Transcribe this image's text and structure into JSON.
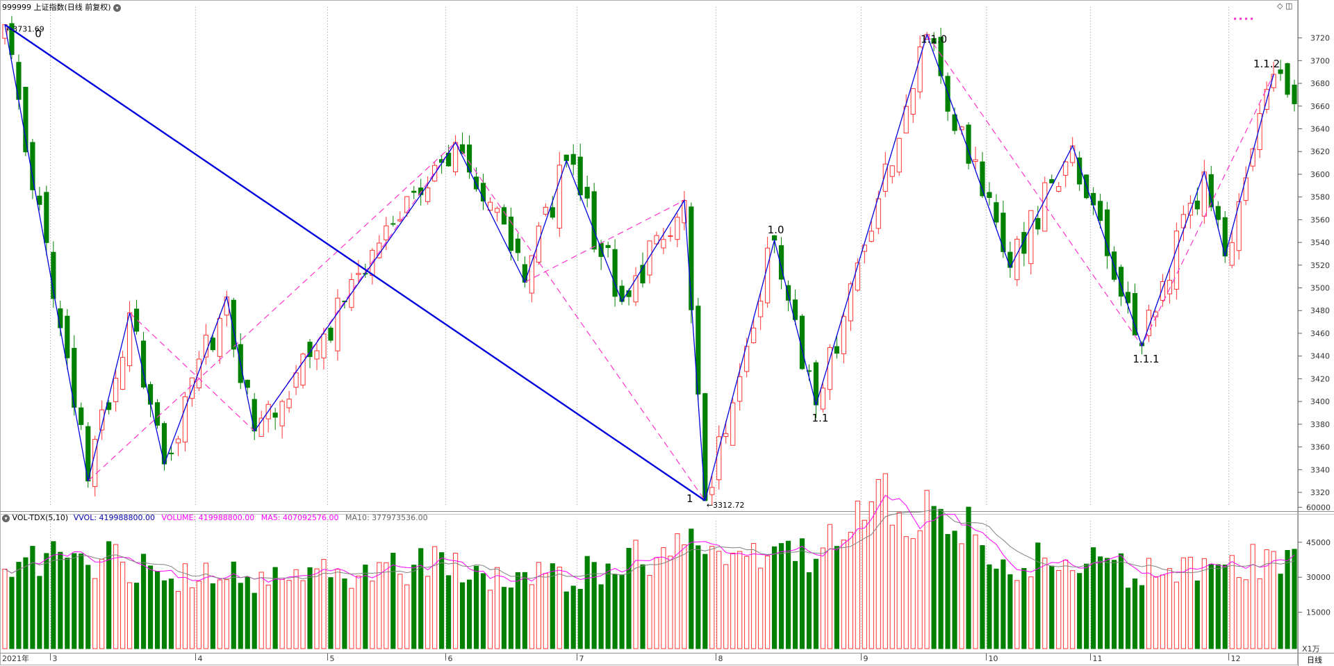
{
  "header": {
    "title": "999999 上证指数(日线 前复权)",
    "menu_icon": "chevron-down-icon",
    "corner_icons": [
      "diamond-icon",
      "window-icon"
    ]
  },
  "volume_header": {
    "indicator": "VOL-TDX(5,10)",
    "vvol": "VVOL: 419988800.00",
    "volume": "VOLUME: 419988800.00",
    "ma5": "MA5: 407092576.00",
    "ma10": "MA10: 377973536.00"
  },
  "footer": {
    "period_label": "日线",
    "unit_label": "X1万",
    "year_label": "2021年"
  },
  "colors": {
    "up": "#ff3232",
    "down": "#008000",
    "wave_primary": "#0000dd",
    "wave_secondary": "#ff33cc",
    "grid": "#a0a0a0",
    "ma5": "#ff00ff",
    "ma10": "#808080",
    "vvol_text": "#0000aa"
  },
  "chart_data": {
    "type": "candlestick",
    "price_axis": {
      "ticks": [
        3320,
        3340,
        3360,
        3380,
        3400,
        3420,
        3440,
        3460,
        3480,
        3500,
        3520,
        3540,
        3560,
        3580,
        3600,
        3620,
        3640,
        3660,
        3680,
        3700,
        3720
      ]
    },
    "month_labels": [
      "3",
      "4",
      "5",
      "6",
      "7",
      "8",
      "9",
      "10",
      "11",
      "12"
    ],
    "high_annotation": "3731.69",
    "low_annotation": "3312.72",
    "wave_labels": [
      {
        "text": "0",
        "idx": 0,
        "price": 3731.69
      },
      {
        "text": "1",
        "idx": 101,
        "price": 3312.72
      },
      {
        "text": "1.0",
        "idx": 111,
        "price": 3542
      },
      {
        "text": "1.1",
        "idx": 117,
        "price": 3397
      },
      {
        "text": "1.1.0",
        "idx": 133,
        "price": 3723
      },
      {
        "text": "1.1.1",
        "idx": 164,
        "price": 3449
      },
      {
        "text": "1.1.2",
        "idx": 183,
        "price": 3688
      }
    ],
    "primary_wave": [
      [
        0,
        3731.69
      ],
      [
        12,
        3330
      ],
      [
        18,
        3478
      ],
      [
        23,
        3345
      ],
      [
        32,
        3492
      ],
      [
        36,
        3374
      ],
      [
        60,
        3582
      ],
      [
        65,
        3628
      ],
      [
        75,
        3505
      ],
      [
        81,
        3612
      ],
      [
        89,
        3488
      ],
      [
        98,
        3577
      ],
      [
        101,
        3312.72
      ],
      [
        111,
        3542
      ],
      [
        117,
        3397
      ],
      [
        133,
        3723
      ],
      [
        145,
        3518
      ],
      [
        154,
        3625
      ],
      [
        164,
        3449
      ],
      [
        173,
        3602
      ],
      [
        176,
        3528
      ],
      [
        183,
        3688
      ]
    ],
    "primary_line": [
      [
        0,
        3731.69
      ],
      [
        101,
        3312.72
      ]
    ],
    "secondary_wave": [
      [
        12,
        3330
      ],
      [
        65,
        3628
      ],
      [
        101,
        3312.72
      ]
    ],
    "secondary_wave_2": [
      [
        18,
        3478
      ],
      [
        36,
        3374
      ],
      [
        65,
        3628
      ]
    ],
    "secondary_wave_3": [
      [
        75,
        3505
      ],
      [
        98,
        3577
      ]
    ],
    "secondary_wave_4": [
      [
        133,
        3723
      ],
      [
        164,
        3449
      ],
      [
        183,
        3688
      ]
    ],
    "volume_axis": {
      "ticks": [
        15000,
        30000,
        45000,
        60000
      ]
    },
    "pivots": [
      [
        0,
        3731.69
      ],
      [
        12,
        3330
      ],
      [
        18,
        3478
      ],
      [
        23,
        3345
      ],
      [
        32,
        3492
      ],
      [
        36,
        3374
      ],
      [
        60,
        3582
      ],
      [
        65,
        3628
      ],
      [
        75,
        3505
      ],
      [
        81,
        3612
      ],
      [
        89,
        3488
      ],
      [
        98,
        3577
      ],
      [
        101,
        3312.72
      ],
      [
        111,
        3542
      ],
      [
        117,
        3397
      ],
      [
        133,
        3723
      ],
      [
        145,
        3518
      ],
      [
        154,
        3625
      ],
      [
        164,
        3449
      ],
      [
        173,
        3602
      ],
      [
        176,
        3528
      ],
      [
        183,
        3688
      ],
      [
        186,
        3662
      ]
    ],
    "volume_anchors": [
      [
        0,
        36000
      ],
      [
        10,
        40000
      ],
      [
        20,
        34000
      ],
      [
        30,
        29000
      ],
      [
        40,
        30000
      ],
      [
        50,
        33000
      ],
      [
        60,
        36000
      ],
      [
        70,
        31000
      ],
      [
        80,
        30000
      ],
      [
        90,
        36000
      ],
      [
        98,
        44000
      ],
      [
        102,
        38000
      ],
      [
        110,
        36000
      ],
      [
        118,
        39000
      ],
      [
        122,
        52000
      ],
      [
        127,
        60000
      ],
      [
        133,
        57000
      ],
      [
        140,
        50000
      ],
      [
        145,
        38000
      ],
      [
        152,
        35000
      ],
      [
        160,
        34000
      ],
      [
        165,
        31000
      ],
      [
        172,
        32000
      ],
      [
        178,
        35000
      ],
      [
        183,
        40000
      ],
      [
        186,
        41998
      ]
    ],
    "candle_count": 187,
    "month_start_idx": [
      7,
      28,
      47,
      64,
      83,
      103,
      124,
      142,
      157,
      177
    ]
  }
}
